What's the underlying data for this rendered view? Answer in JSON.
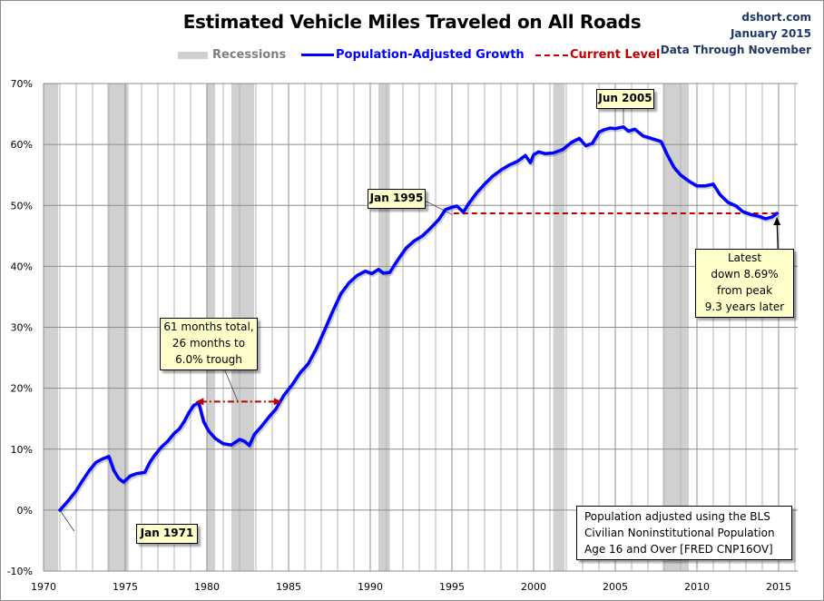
{
  "header": {
    "title": "Estimated Vehicle Miles Traveled on All Roads",
    "source_lines": [
      "dshort.com",
      "January 2015",
      "Data Through November"
    ]
  },
  "legend": {
    "recessions": "Recessions",
    "growth": "Population-Adjusted Growth",
    "current": "Current Level"
  },
  "colors": {
    "series": "#0000ff",
    "current_level": "#c00000",
    "recession": "#d0d0d0",
    "callout_bg": "#ffffcc"
  },
  "annotations": {
    "start": "Jan 1971",
    "mid": "Jan 1995",
    "peak": "Jun 2005",
    "trough_note": [
      "61 months total,",
      "26 months to",
      "6.0% trough"
    ],
    "latest": [
      "Latest",
      "down 8.69%",
      "from peak",
      "9.3 years later"
    ],
    "footnote": [
      "Population adjusted using the BLS",
      "Civilian Noninstitutional Population",
      "Age 16 and Over  [FRED CNP16OV]"
    ]
  },
  "chart_data": {
    "type": "line",
    "title": "Estimated Vehicle Miles Traveled on All Roads",
    "xlabel": "",
    "ylabel": "",
    "xlim": [
      1970,
      2016.2
    ],
    "ylim": [
      -10,
      70
    ],
    "grid": true,
    "legend_position": "top-center",
    "x_ticks": [
      "1970",
      "1975",
      "1980",
      "1985",
      "1990",
      "1995",
      "2000",
      "2005",
      "2010",
      "2015"
    ],
    "y_ticks": [
      "-10%",
      "0%",
      "10%",
      "20%",
      "30%",
      "40%",
      "50%",
      "60%",
      "70%"
    ],
    "recessions": [
      [
        1970.0,
        1970.9
      ],
      [
        1973.9,
        1975.2
      ],
      [
        1980.0,
        1980.5
      ],
      [
        1981.5,
        1982.9
      ],
      [
        1990.5,
        1991.2
      ],
      [
        2001.2,
        2001.9
      ],
      [
        2007.9,
        2009.5
      ]
    ],
    "current_level": 48.7,
    "current_level_range": [
      1995.1,
      2014.9
    ],
    "series": [
      {
        "name": "Population-Adjusted Growth",
        "x": [
          1971.0,
          1971.5,
          1972.0,
          1972.3,
          1972.8,
          1973.2,
          1973.6,
          1974.0,
          1974.3,
          1974.6,
          1974.9,
          1975.3,
          1975.7,
          1976.2,
          1976.5,
          1976.8,
          1977.2,
          1977.6,
          1978.0,
          1978.3,
          1978.6,
          1978.9,
          1979.2,
          1979.5,
          1979.8,
          1980.1,
          1980.5,
          1981.0,
          1981.5,
          1982.0,
          1982.3,
          1982.6,
          1982.9,
          1983.3,
          1983.8,
          1984.2,
          1984.7,
          1985.2,
          1985.7,
          1986.2,
          1986.7,
          1987.2,
          1987.7,
          1988.2,
          1988.7,
          1989.2,
          1989.7,
          1990.1,
          1990.5,
          1990.8,
          1991.2,
          1991.5,
          1991.8,
          1992.2,
          1992.7,
          1993.2,
          1993.7,
          1994.2,
          1994.6,
          1995.0,
          1995.3,
          1995.7,
          1996.0,
          1996.5,
          1997.0,
          1997.5,
          1998.0,
          1998.5,
          1999.0,
          1999.5,
          1999.8,
          2000.0,
          2000.3,
          2000.7,
          2001.2,
          2001.8,
          2002.3,
          2002.8,
          2003.2,
          2003.6,
          2004.0,
          2004.3,
          2004.7,
          2005.0,
          2005.5,
          2005.8,
          2006.2,
          2006.7,
          2007.2,
          2007.8,
          2008.2,
          2008.6,
          2009.0,
          2009.5,
          2010.0,
          2010.5,
          2011.0,
          2011.4,
          2011.9,
          2012.4,
          2012.8,
          2013.3,
          2013.8,
          2014.2,
          2014.6,
          2014.9
        ],
        "y": [
          0.0,
          1.5,
          3.2,
          4.5,
          6.5,
          7.8,
          8.4,
          8.8,
          6.5,
          5.2,
          4.6,
          5.6,
          6.0,
          6.2,
          7.8,
          9.0,
          10.3,
          11.3,
          12.6,
          13.3,
          14.5,
          16.0,
          17.2,
          17.6,
          14.5,
          13.0,
          11.8,
          10.9,
          10.7,
          11.6,
          11.3,
          10.6,
          12.4,
          13.6,
          15.3,
          16.5,
          18.8,
          20.5,
          22.5,
          24.0,
          26.5,
          29.5,
          32.6,
          35.5,
          37.3,
          38.5,
          39.2,
          38.8,
          39.5,
          38.9,
          39.0,
          40.3,
          41.5,
          43.0,
          44.2,
          45.0,
          46.3,
          47.7,
          49.3,
          49.7,
          49.9,
          48.9,
          50.2,
          52.0,
          53.5,
          54.8,
          55.8,
          56.6,
          57.2,
          58.2,
          57.0,
          58.3,
          58.8,
          58.5,
          58.6,
          59.2,
          60.3,
          61.0,
          59.8,
          60.2,
          62.0,
          62.4,
          62.7,
          62.6,
          62.9,
          62.2,
          62.5,
          61.4,
          61.0,
          60.5,
          58.2,
          56.2,
          55.0,
          54.0,
          53.2,
          53.2,
          53.5,
          51.8,
          50.5,
          49.9,
          49.0,
          48.5,
          48.2,
          47.8,
          48.1,
          48.7
        ]
      }
    ]
  }
}
